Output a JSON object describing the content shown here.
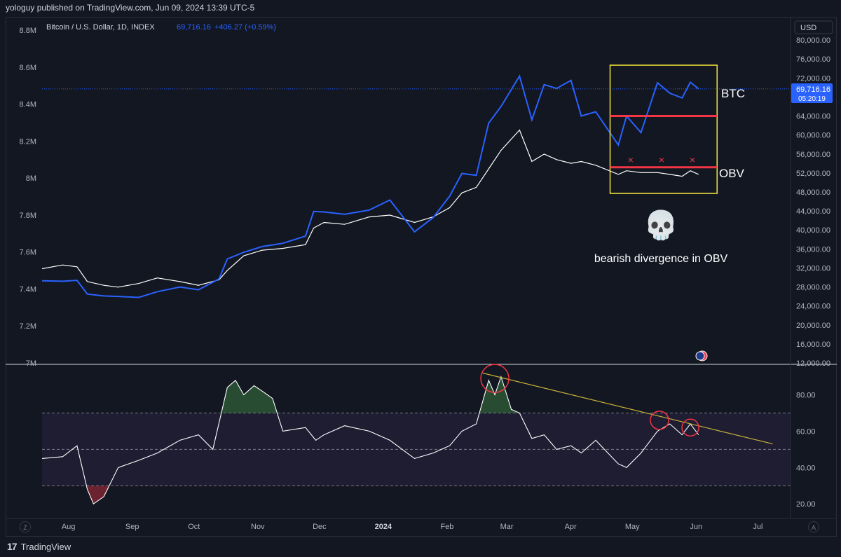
{
  "header": {
    "published": "yologuy published on TradingView.com, Jun 09, 2024 13:39 UTC-5"
  },
  "legend": {
    "symbol": "Bitcoin / U.S. Dollar, 1D, INDEX",
    "price": "69,716.16",
    "change": "+406.27 (+0.59%)"
  },
  "currency_button": "USD",
  "price_badge": {
    "price": "69,716.16",
    "countdown": "05:20:19"
  },
  "annotations": {
    "btc_label": "BTC",
    "obv_label": "OBV",
    "note": "bearish divergence in OBV",
    "skull_glyph": "💀",
    "x_mark": "×"
  },
  "footer": {
    "brand": "TradingView",
    "z_button": "Z",
    "a_button": "A"
  },
  "colors": {
    "background": "#131722",
    "btc_line": "#2962ff",
    "obv_line": "#ffffff",
    "box": "#f5e33b",
    "support": "#f23645",
    "trendline": "#c9b23a",
    "band_fill": "#7e57c2",
    "overbought_fill": "#4caf50",
    "oversold_fill": "#f23645"
  },
  "chart_data": [
    {
      "type": "line",
      "title": "Bitcoin / U.S. Dollar, 1D, INDEX",
      "x": [
        "2023-07-26",
        "2023-08-05",
        "2023-08-12",
        "2023-08-17",
        "2023-08-25",
        "2023-09-01",
        "2023-09-11",
        "2023-09-20",
        "2023-10-01",
        "2023-10-10",
        "2023-10-20",
        "2023-10-24",
        "2023-11-01",
        "2023-11-10",
        "2023-11-20",
        "2023-12-01",
        "2023-12-05",
        "2023-12-10",
        "2023-12-20",
        "2024-01-01",
        "2024-01-11",
        "2024-01-23",
        "2024-02-01",
        "2024-02-09",
        "2024-02-15",
        "2024-02-22",
        "2024-02-28",
        "2024-03-05",
        "2024-03-14",
        "2024-03-20",
        "2024-03-26",
        "2024-04-01",
        "2024-04-08",
        "2024-04-13",
        "2024-04-20",
        "2024-05-01",
        "2024-05-05",
        "2024-05-12",
        "2024-05-20",
        "2024-05-26",
        "2024-06-01",
        "2024-06-05",
        "2024-06-09"
      ],
      "series": [
        {
          "name": "BTC",
          "values": [
            29300,
            29200,
            29400,
            26500,
            26100,
            26000,
            25800,
            27000,
            28000,
            27400,
            29700,
            33900,
            35300,
            36500,
            37200,
            38700,
            43900,
            43800,
            43300,
            44200,
            46300,
            39600,
            42600,
            47100,
            51900,
            51500,
            62500,
            66000,
            72400,
            63200,
            70600,
            69800,
            71500,
            64000,
            64900,
            57900,
            64000,
            60500,
            71000,
            68800,
            67800,
            71100,
            69716.16
          ]
        }
      ],
      "ylim": [
        12000,
        84000
      ],
      "y_ticks": [
        "80,000.00",
        "76,000.00",
        "72,000.00",
        "68,000.00",
        "64,000.00",
        "60,000.00",
        "56,000.00",
        "52,000.00",
        "48,000.00",
        "44,000.00",
        "40,000.00",
        "36,000.00",
        "32,000.00",
        "28,000.00",
        "24,000.00",
        "20,000.00",
        "16,000.00",
        "12,000.00"
      ],
      "y2_ticks": [
        "8.8M",
        "8.6M",
        "8.4M",
        "8.2M",
        "8M",
        "7.8M",
        "7.6M",
        "7.4M",
        "7.2M",
        "7M"
      ],
      "y2lim": [
        7000000,
        8850000
      ],
      "obv": {
        "name": "OBV",
        "values": [
          7510000,
          7530000,
          7520000,
          7440000,
          7420000,
          7410000,
          7430000,
          7460000,
          7440000,
          7420000,
          7450000,
          7500000,
          7580000,
          7610000,
          7620000,
          7640000,
          7730000,
          7760000,
          7750000,
          7790000,
          7800000,
          7760000,
          7790000,
          7840000,
          7920000,
          7950000,
          8050000,
          8150000,
          8260000,
          8090000,
          8130000,
          8100000,
          8080000,
          8090000,
          8070000,
          8020000,
          8040000,
          8030000,
          8030000,
          8020000,
          8010000,
          8040000,
          8020000
        ]
      },
      "support_levels": [
        64000,
        53200
      ],
      "box": {
        "x": [
          "2024-04-27",
          "2024-06-18"
        ],
        "y": [
          47700,
          74700
        ]
      },
      "x_ticks": [
        "Aug",
        "Sep",
        "Oct",
        "Nov",
        "Dec",
        "2024",
        "Feb",
        "Mar",
        "Apr",
        "May",
        "Jun",
        "Jul"
      ]
    },
    {
      "type": "line",
      "title": "",
      "x": [
        "2023-07-26",
        "2023-08-05",
        "2023-08-12",
        "2023-08-17",
        "2023-08-20",
        "2023-08-25",
        "2023-09-01",
        "2023-09-11",
        "2023-09-20",
        "2023-10-01",
        "2023-10-10",
        "2023-10-17",
        "2023-10-24",
        "2023-10-28",
        "2023-11-01",
        "2023-11-06",
        "2023-11-10",
        "2023-11-15",
        "2023-11-20",
        "2023-12-01",
        "2023-12-06",
        "2023-12-10",
        "2023-12-20",
        "2024-01-01",
        "2024-01-11",
        "2024-01-23",
        "2024-02-01",
        "2024-02-09",
        "2024-02-15",
        "2024-02-22",
        "2024-02-28",
        "2024-03-02",
        "2024-03-05",
        "2024-03-10",
        "2024-03-14",
        "2024-03-20",
        "2024-03-26",
        "2024-04-01",
        "2024-04-08",
        "2024-04-13",
        "2024-04-20",
        "2024-05-01",
        "2024-05-05",
        "2024-05-12",
        "2024-05-20",
        "2024-05-26",
        "2024-06-01",
        "2024-06-05",
        "2024-06-09"
      ],
      "series": [
        {
          "name": "",
          "values": [
            45,
            46,
            52,
            28,
            20,
            24,
            40,
            44,
            48,
            55,
            58,
            50,
            84,
            88,
            80,
            85,
            82,
            78,
            60,
            62,
            55,
            58,
            63,
            60,
            55,
            45,
            48,
            52,
            60,
            64,
            88,
            80,
            90,
            72,
            70,
            56,
            58,
            50,
            52,
            48,
            55,
            42,
            40,
            48,
            60,
            64,
            58,
            64,
            58
          ]
        }
      ],
      "ylim": [
        12,
        96
      ],
      "bands": {
        "upper": 70,
        "middle": 50,
        "lower": 30
      },
      "y_ticks": [
        "80.00",
        "60.00",
        "40.00",
        "20.00"
      ],
      "trendline": {
        "x": [
          "2024-02-25",
          "2024-07-15"
        ],
        "y": [
          92,
          53
        ]
      },
      "circles": [
        {
          "x": "2024-03-02",
          "y": 89
        },
        {
          "x": "2024-05-21",
          "y": 66
        },
        {
          "x": "2024-06-05",
          "y": 62
        }
      ]
    }
  ]
}
